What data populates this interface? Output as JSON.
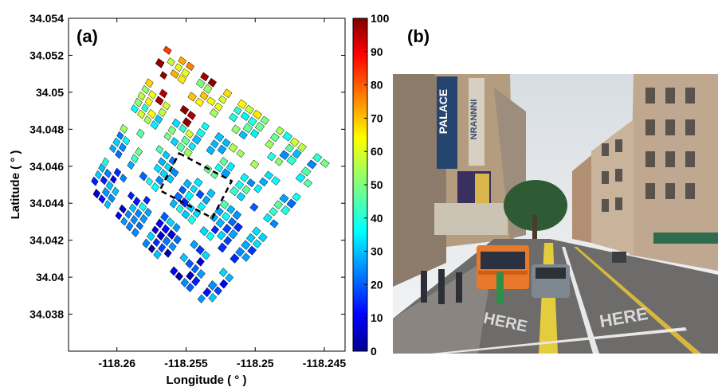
{
  "chart_data": [
    {
      "type": "map-heatmap",
      "panel_label": "(a)",
      "xlabel": "Longitude ( ° )",
      "ylabel": "Latitude ( ° )",
      "xlim": [
        -118.2635,
        -118.2435
      ],
      "ylim": [
        34.036,
        34.054
      ],
      "x_ticks": [
        -118.26,
        -118.255,
        -118.25,
        -118.245
      ],
      "x_tick_labels": [
        "-118.26",
        "-118.255",
        "-118.25",
        "-118.245"
      ],
      "y_ticks": [
        34.038,
        34.04,
        34.042,
        34.044,
        34.046,
        34.048,
        34.05,
        34.052,
        34.054
      ],
      "y_tick_labels": [
        "34.038",
        "34.04",
        "34.042",
        "34.044",
        "34.046",
        "34.048",
        "34.05",
        "34.052",
        "34.054"
      ],
      "colorbar": {
        "min": 0,
        "max": 100,
        "ticks": [
          0,
          10,
          20,
          30,
          40,
          50,
          60,
          70,
          80,
          90,
          100
        ],
        "tick_labels": [
          "0",
          "10",
          "20",
          "30",
          "40",
          "50",
          "60",
          "70",
          "80",
          "90",
          "100"
        ],
        "colormap": "jet"
      },
      "highlight_box": {
        "style": "dashed",
        "corners": [
          [
            -118.2555,
            34.0467
          ],
          [
            -118.2517,
            34.0452
          ],
          [
            -118.2531,
            34.0432
          ],
          [
            -118.2569,
            34.0447
          ]
        ]
      },
      "city_block_footprint": {
        "corners": [
          [
            -118.2565,
            34.0526
          ],
          [
            -118.2445,
            34.0462
          ],
          [
            -118.2535,
            34.0382
          ],
          [
            -118.2622,
            34.0448
          ]
        ]
      },
      "grid": false
    },
    {
      "type": "photo",
      "panel_label": "(b)",
      "sign_text": [
        "PALACE",
        "NRANNNI",
        "HERE",
        "HERE"
      ]
    }
  ]
}
